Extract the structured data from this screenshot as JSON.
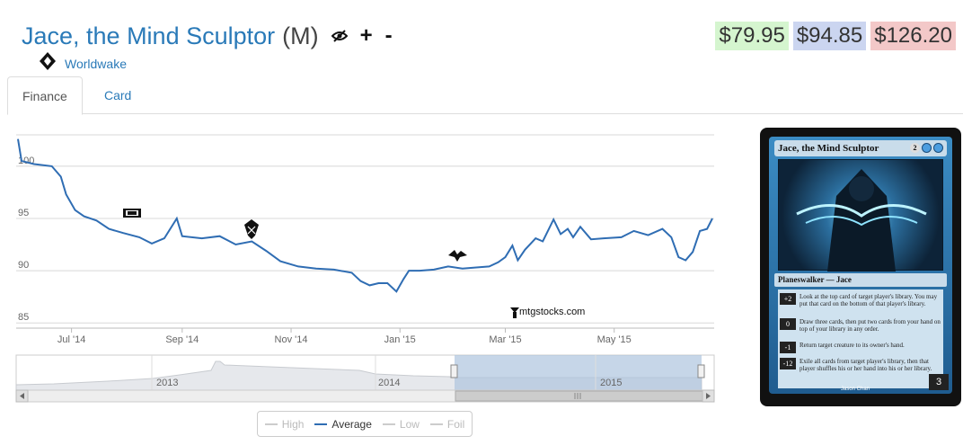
{
  "header": {
    "card_name": "Jace, the Mind Sculptor",
    "rarity": "(M)",
    "plus_label": "+",
    "minus_label": "-"
  },
  "prices": {
    "low": "$79.95",
    "average": "$94.85",
    "high": "$126.20"
  },
  "set": {
    "name": "Worldwake"
  },
  "tabs": [
    {
      "label": "Finance"
    },
    {
      "label": "Card"
    }
  ],
  "chart_data": {
    "type": "line",
    "series": [
      {
        "name": "Average"
      }
    ],
    "ylim": [
      84.5,
      103
    ],
    "y_ticks": [
      "85",
      "90",
      "95",
      "100"
    ],
    "x_ticks": [
      "Jul '14",
      "Sep '14",
      "Nov '14",
      "Jan '15",
      "Mar '15",
      "May '15"
    ],
    "points": [
      [
        "2014-06-01",
        102.6
      ],
      [
        "2014-06-03",
        100.5
      ],
      [
        "2014-06-10",
        100.2
      ],
      [
        "2014-06-20",
        100.0
      ],
      [
        "2014-06-25",
        99.0
      ],
      [
        "2014-06-28",
        97.3
      ],
      [
        "2014-07-03",
        95.8
      ],
      [
        "2014-07-08",
        95.2
      ],
      [
        "2014-07-15",
        94.8
      ],
      [
        "2014-07-22",
        94.0
      ],
      [
        "2014-07-30",
        93.6
      ],
      [
        "2014-08-08",
        93.2
      ],
      [
        "2014-08-15",
        92.6
      ],
      [
        "2014-08-22",
        93.1
      ],
      [
        "2014-08-29",
        95.0
      ],
      [
        "2014-09-01",
        93.3
      ],
      [
        "2014-09-12",
        93.1
      ],
      [
        "2014-09-22",
        93.3
      ],
      [
        "2014-10-01",
        92.5
      ],
      [
        "2014-10-10",
        92.8
      ],
      [
        "2014-10-18",
        91.9
      ],
      [
        "2014-10-26",
        90.9
      ],
      [
        "2014-11-05",
        90.4
      ],
      [
        "2014-11-15",
        90.2
      ],
      [
        "2014-11-25",
        90.1
      ],
      [
        "2014-12-05",
        89.8
      ],
      [
        "2014-12-10",
        89.0
      ],
      [
        "2014-12-15",
        88.6
      ],
      [
        "2014-12-20",
        88.8
      ],
      [
        "2014-12-25",
        88.8
      ],
      [
        "2014-12-30",
        88.0
      ],
      [
        "2015-01-03",
        89.2
      ],
      [
        "2015-01-06",
        90.0
      ],
      [
        "2015-01-12",
        90.0
      ],
      [
        "2015-01-20",
        90.1
      ],
      [
        "2015-01-28",
        90.4
      ],
      [
        "2015-02-05",
        90.2
      ],
      [
        "2015-02-12",
        90.3
      ],
      [
        "2015-02-20",
        90.4
      ],
      [
        "2015-02-25",
        90.8
      ],
      [
        "2015-03-01",
        91.3
      ],
      [
        "2015-03-05",
        92.4
      ],
      [
        "2015-03-08",
        91.0
      ],
      [
        "2015-03-12",
        92.0
      ],
      [
        "2015-03-18",
        93.1
      ],
      [
        "2015-03-22",
        92.8
      ],
      [
        "2015-03-28",
        94.9
      ],
      [
        "2015-04-01",
        93.5
      ],
      [
        "2015-04-05",
        94.0
      ],
      [
        "2015-04-08",
        93.2
      ],
      [
        "2015-04-12",
        94.2
      ],
      [
        "2015-04-18",
        93.0
      ],
      [
        "2015-04-25",
        93.1
      ],
      [
        "2015-05-05",
        93.2
      ],
      [
        "2015-05-12",
        93.8
      ],
      [
        "2015-05-20",
        93.4
      ],
      [
        "2015-05-28",
        94.0
      ],
      [
        "2015-06-02",
        93.2
      ],
      [
        "2015-06-06",
        91.3
      ],
      [
        "2015-06-10",
        91.0
      ],
      [
        "2015-06-14",
        91.8
      ],
      [
        "2015-06-18",
        93.8
      ],
      [
        "2015-06-22",
        94.0
      ],
      [
        "2015-06-25",
        95.0
      ]
    ],
    "navigator_labels": [
      "2013",
      "2014",
      "2015"
    ],
    "legend_placement": "bottom-center",
    "watermark": "mtgstocks.com"
  },
  "legend": {
    "high": "High",
    "average": "Average",
    "low": "Low",
    "foil": "Foil"
  },
  "card": {
    "title": "Jace, the Mind Sculptor",
    "cost_generic": "2",
    "type_line": "Planeswalker — Jace",
    "abilities": [
      {
        "cost": "+2",
        "text": "Look at the top card of target player's library. You may put that card on the bottom of that player's library."
      },
      {
        "cost": "0",
        "text": "Draw three cards, then put two cards from your hand on top of your library in any order."
      },
      {
        "cost": "-1",
        "text": "Return target creature to its owner's hand."
      },
      {
        "cost": "-12",
        "text": "Exile all cards from target player's library, then that player shuffles his or her hand into his or her library."
      }
    ],
    "loyalty": "3",
    "artist": "Jason Chan"
  },
  "colors": {
    "link": "#2a7ab8",
    "line": "#2f6db3",
    "low_bg": "#d5f5cf",
    "avg_bg": "#cbd5f0",
    "high_bg": "#f3c8c8"
  }
}
